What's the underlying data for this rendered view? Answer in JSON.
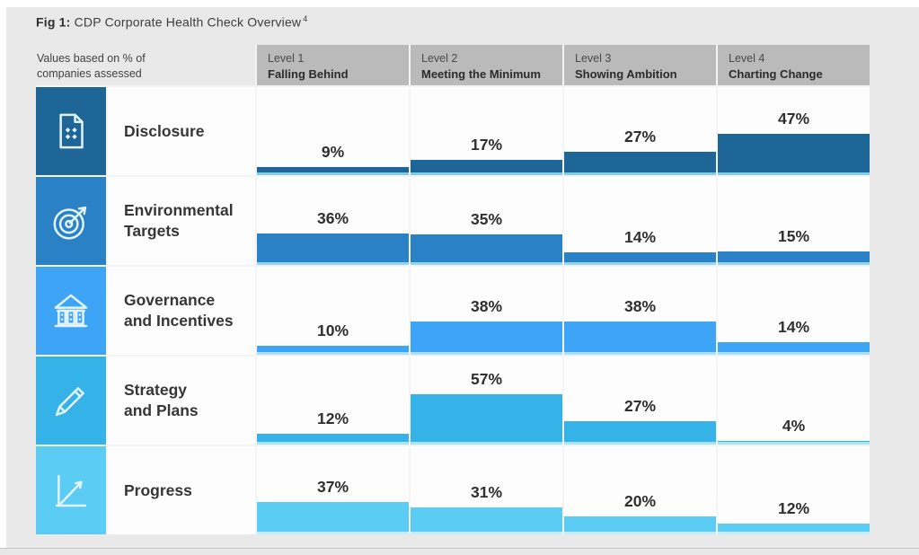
{
  "figure": {
    "title_label": "Fig 1:",
    "title_text": "CDP Corporate Health Check Overview",
    "footnote_marker": "4"
  },
  "colors": {
    "page_background": "#e9e9e9",
    "header_background": "#bababa",
    "cell_background": "#fdfdfd",
    "text_dark": "#2f2f2f"
  },
  "chart_data": {
    "type": "bar",
    "title": "Fig 1: CDP Corporate Health Check Overview",
    "note_lines": [
      "Values based on % of",
      "companies assessed"
    ],
    "unit": "%",
    "ylim": [
      0,
      100
    ],
    "grid": false,
    "columns": [
      {
        "level": "Level 1",
        "name": "Falling Behind"
      },
      {
        "level": "Level 2",
        "name": "Meeting the Minimum"
      },
      {
        "level": "Level 3",
        "name": "Showing Ambition"
      },
      {
        "level": "Level 4",
        "name": "Charting Change"
      }
    ],
    "series": [
      {
        "name": "Disclosure",
        "lines": [
          "Disclosure"
        ],
        "icon": "document-icon",
        "color": "#1e6598",
        "tint": "#7ecde9",
        "values": [
          9,
          17,
          27,
          47
        ]
      },
      {
        "name": "Environmental Targets",
        "lines": [
          "Environmental",
          "Targets"
        ],
        "icon": "target-icon",
        "color": "#2b81c5",
        "tint": "#93d6f1",
        "values": [
          36,
          35,
          14,
          15
        ]
      },
      {
        "name": "Governance and Incentives",
        "lines": [
          "Governance",
          "and Incentives"
        ],
        "icon": "bank-icon",
        "color": "#3ea4f6",
        "tint": "#a9ddfc",
        "values": [
          10,
          38,
          38,
          14
        ]
      },
      {
        "name": "Strategy and Plans",
        "lines": [
          "Strategy",
          "and Plans"
        ],
        "icon": "pencil-icon",
        "color": "#35b2e7",
        "tint": "#a5e5f9",
        "values": [
          12,
          57,
          27,
          4
        ]
      },
      {
        "name": "Progress",
        "lines": [
          "Progress"
        ],
        "icon": "line-chart-icon",
        "color": "#5bccf3",
        "tint": "#c0edfc",
        "values": [
          37,
          31,
          20,
          12
        ]
      }
    ]
  }
}
